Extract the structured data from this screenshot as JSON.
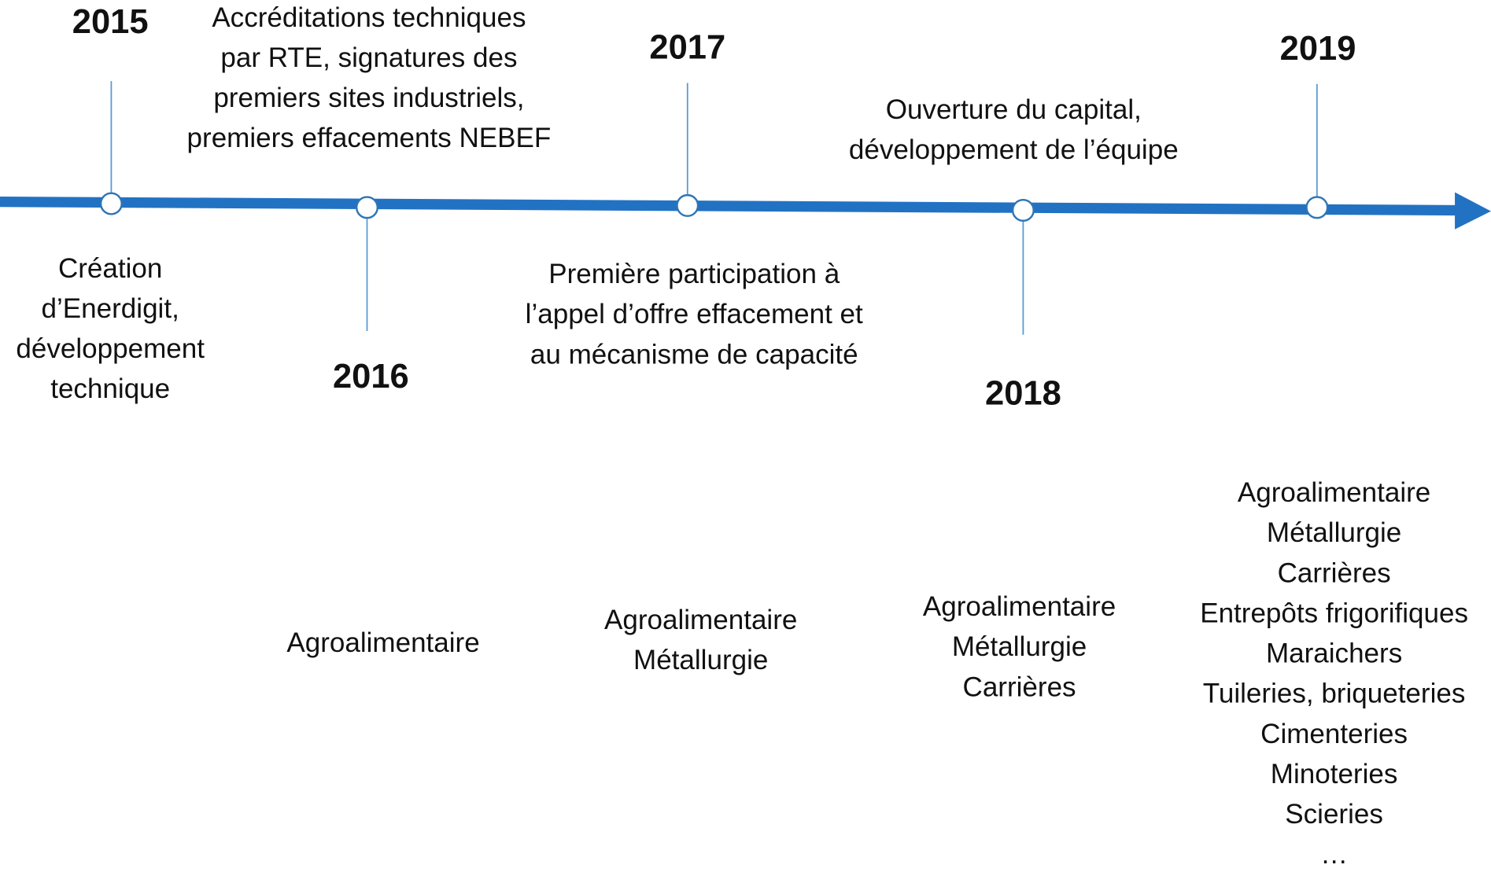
{
  "milestones": [
    {
      "year": "2015",
      "description": [
        "Création",
        "d’Enerdigit,",
        "développement",
        "technique"
      ]
    },
    {
      "year": "2016",
      "description": [
        "Accréditations techniques",
        "par RTE, signatures des",
        "premiers sites industriels,",
        "premiers effacements NEBEF"
      ],
      "sectors": [
        "Agroalimentaire"
      ]
    },
    {
      "year": "2017",
      "description": [
        "Première participation à",
        "l’appel d’offre effacement et",
        "au mécanisme de capacité"
      ],
      "sectors": [
        "Agroalimentaire",
        "Métallurgie"
      ]
    },
    {
      "year": "2018",
      "description": [
        "Ouverture du capital,",
        "développement de l’équipe"
      ],
      "sectors": [
        "Agroalimentaire",
        "Métallurgie",
        "Carrières"
      ]
    },
    {
      "year": "2019",
      "sectors": [
        "Agroalimentaire",
        "Métallurgie",
        "Carrières",
        "Entrepôts frigorifiques",
        "Maraichers",
        "Tuileries, briqueteries",
        "Cimenteries",
        "Minoteries",
        "Scieries",
        "…"
      ]
    }
  ]
}
